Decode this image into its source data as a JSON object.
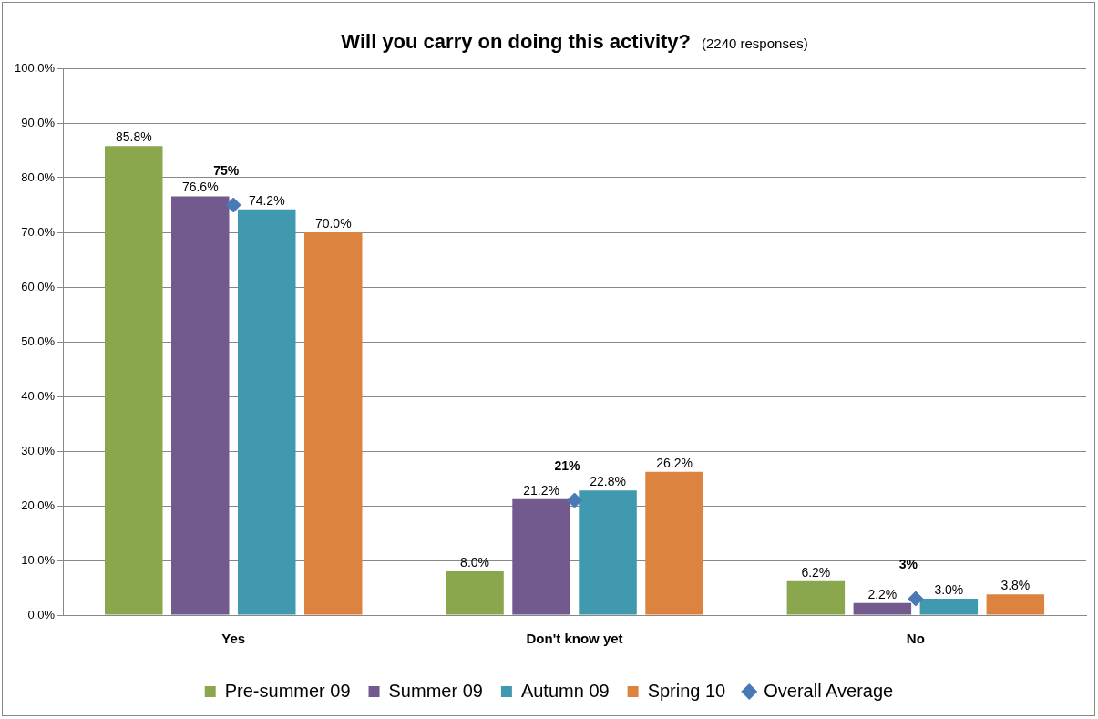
{
  "chart_data": {
    "type": "bar",
    "title": "Will you carry on doing this activity?",
    "subtitle": "(2240 responses)",
    "categories": [
      "Yes",
      "Don't know yet",
      "No"
    ],
    "series": [
      {
        "name": "Pre-summer 09",
        "color": "#8aa74d",
        "values": [
          85.8,
          8.0,
          6.2
        ],
        "value_labels": [
          "85.8%",
          "8.0%",
          "6.2%"
        ]
      },
      {
        "name": "Summer 09",
        "color": "#72598e",
        "values": [
          76.6,
          21.2,
          2.2
        ],
        "value_labels": [
          "76.6%",
          "21.2%",
          "2.2%"
        ]
      },
      {
        "name": "Autumn 09",
        "color": "#4199b0",
        "values": [
          74.2,
          22.8,
          3.0
        ],
        "value_labels": [
          "74.2%",
          "22.8%",
          "3.0%"
        ]
      },
      {
        "name": "Spring 10",
        "color": "#dc843f",
        "values": [
          70.0,
          26.2,
          3.8
        ],
        "value_labels": [
          "70.0%",
          "26.2%",
          "3.8%"
        ]
      },
      {
        "name": "Overall Average",
        "type": "scatter",
        "marker": "diamond",
        "color": "#4a7ab5",
        "x": [
          "Yes",
          "Don't know yet",
          "No"
        ],
        "values": [
          75,
          21,
          3
        ],
        "value_labels": [
          "75%",
          "21%",
          "3%"
        ]
      }
    ],
    "ylim": [
      0,
      100
    ],
    "yticks": [
      {
        "value": 0,
        "label": "0.0%"
      },
      {
        "value": 10,
        "label": "10.0%"
      },
      {
        "value": 20,
        "label": "20.0%"
      },
      {
        "value": 30,
        "label": "30.0%"
      },
      {
        "value": 40,
        "label": "40.0%"
      },
      {
        "value": 50,
        "label": "50.0%"
      },
      {
        "value": 60,
        "label": "60.0%"
      },
      {
        "value": 70,
        "label": "70.0%"
      },
      {
        "value": 80,
        "label": "80.0%"
      },
      {
        "value": 90,
        "label": "90.0%"
      },
      {
        "value": 100,
        "label": "100.0%"
      }
    ],
    "grid": "y",
    "legend": "bottom"
  }
}
